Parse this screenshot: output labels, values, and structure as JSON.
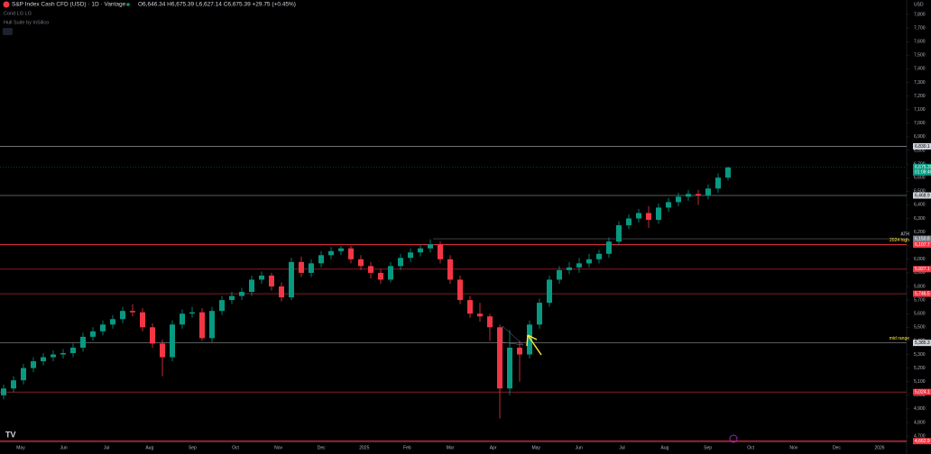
{
  "header": {
    "symbol": "S&P Index Cash CFD (USD) · 1D · Vantage",
    "ohlc_readout": "O6,646.34 H6,675.39 L6,627.14 C6,675.39 +29.75 (+0.45%)",
    "indicator_1": "Cond LG LG",
    "indicator_2": "Hull Suite by InSilico",
    "currency": "USD"
  },
  "chart_data": {
    "type": "candlestick",
    "title": "S&P Index Cash CFD (USD)",
    "colors": {
      "up": "#089981",
      "down": "#f23645"
    },
    "x_labels": [
      "May",
      "Jun",
      "Jul",
      "Aug",
      "Sep",
      "Oct",
      "Nov",
      "Dec",
      "2025",
      "Feb",
      "Mar",
      "Apr",
      "May",
      "Jun",
      "Jul",
      "Aug",
      "Sep",
      "Oct",
      "Nov",
      "Dec",
      "2026"
    ],
    "ylim": [
      4661,
      7906
    ],
    "yticks": [
      {
        "value": 4700,
        "label": "4,700"
      },
      {
        "value": 4800,
        "label": "4,800"
      },
      {
        "value": 4900,
        "label": "4,900"
      },
      {
        "value": 5000,
        "label": "5,000"
      },
      {
        "value": 5100,
        "label": "5,100"
      },
      {
        "value": 5200,
        "label": "5,200"
      },
      {
        "value": 5300,
        "label": "5,300"
      },
      {
        "value": 5400,
        "label": "5,400"
      },
      {
        "value": 5500,
        "label": "5,500"
      },
      {
        "value": 5600,
        "label": "5,600"
      },
      {
        "value": 5700,
        "label": "5,700"
      },
      {
        "value": 5800,
        "label": "5,800"
      },
      {
        "value": 5900,
        "label": "5,900"
      },
      {
        "value": 6000,
        "label": "6,000"
      },
      {
        "value": 6100,
        "label": "6,100"
      },
      {
        "value": 6200,
        "label": "6,200"
      },
      {
        "value": 6300,
        "label": "6,300"
      },
      {
        "value": 6400,
        "label": "6,400"
      },
      {
        "value": 6500,
        "label": "6,500"
      },
      {
        "value": 6600,
        "label": "6,600"
      },
      {
        "value": 6700,
        "label": "6,700"
      },
      {
        "value": 6800,
        "label": "6,800"
      },
      {
        "value": 6900,
        "label": "6,900"
      },
      {
        "value": 7000,
        "label": "7,000"
      },
      {
        "value": 7100,
        "label": "7,100"
      },
      {
        "value": 7200,
        "label": "7,200"
      },
      {
        "value": 7300,
        "label": "7,300"
      },
      {
        "value": 7400,
        "label": "7,400"
      },
      {
        "value": 7500,
        "label": "7,500"
      },
      {
        "value": 7600,
        "label": "7,600"
      },
      {
        "value": 7700,
        "label": "7,700"
      },
      {
        "value": 7800,
        "label": "7,800"
      }
    ],
    "levels": [
      {
        "value": 6830.1,
        "label": "6,830.1",
        "color": "#d1d4dc"
      },
      {
        "value": 6468.9,
        "label": "6,468.9",
        "color": "#d1d4dc"
      },
      {
        "value": 6150.8,
        "label": "6,150.8",
        "color": "#787b86",
        "note": "ATH"
      },
      {
        "value": 6107.7,
        "label": "6,107.7",
        "color": "#f23645",
        "note": "2024 high"
      },
      {
        "value": 5927.1,
        "label": "5,927.1",
        "color": "#f23645"
      },
      {
        "value": 5746.5,
        "label": "5,746.5",
        "color": "#f23645"
      },
      {
        "value": 5385.3,
        "label": "5,385.3",
        "color": "#d1d4dc",
        "note": "mid range"
      },
      {
        "value": 5024.1,
        "label": "5,024.1",
        "color": "#f23645"
      },
      {
        "value": 4662.9,
        "label": "4,662.9",
        "color": "#f23645"
      }
    ],
    "last_price": {
      "value": 6675.39,
      "label": "6,675.39",
      "countdown": "01:08:46",
      "color": "#089981"
    },
    "ohlc": [
      [
        5000,
        5080,
        4970,
        5050
      ],
      [
        5050,
        5140,
        5020,
        5110
      ],
      [
        5110,
        5230,
        5080,
        5200
      ],
      [
        5200,
        5280,
        5170,
        5250
      ],
      [
        5250,
        5310,
        5220,
        5280
      ],
      [
        5280,
        5330,
        5250,
        5300
      ],
      [
        5300,
        5340,
        5270,
        5310
      ],
      [
        5310,
        5380,
        5280,
        5350
      ],
      [
        5350,
        5460,
        5320,
        5430
      ],
      [
        5430,
        5500,
        5400,
        5470
      ],
      [
        5470,
        5550,
        5440,
        5520
      ],
      [
        5520,
        5590,
        5490,
        5560
      ],
      [
        5560,
        5650,
        5530,
        5620
      ],
      [
        5620,
        5670,
        5580,
        5610
      ],
      [
        5610,
        5640,
        5470,
        5500
      ],
      [
        5500,
        5530,
        5350,
        5380
      ],
      [
        5380,
        5410,
        5140,
        5280
      ],
      [
        5280,
        5550,
        5250,
        5520
      ],
      [
        5520,
        5630,
        5490,
        5600
      ],
      [
        5600,
        5650,
        5570,
        5610
      ],
      [
        5610,
        5640,
        5400,
        5420
      ],
      [
        5420,
        5650,
        5390,
        5620
      ],
      [
        5620,
        5730,
        5590,
        5700
      ],
      [
        5700,
        5760,
        5670,
        5730
      ],
      [
        5730,
        5790,
        5700,
        5760
      ],
      [
        5760,
        5880,
        5730,
        5850
      ],
      [
        5850,
        5910,
        5820,
        5880
      ],
      [
        5880,
        5900,
        5770,
        5800
      ],
      [
        5800,
        5830,
        5690,
        5720
      ],
      [
        5720,
        6010,
        5700,
        5980
      ],
      [
        5980,
        6020,
        5870,
        5900
      ],
      [
        5900,
        6000,
        5870,
        5970
      ],
      [
        5970,
        6060,
        5940,
        6030
      ],
      [
        6030,
        6090,
        6000,
        6060
      ],
      [
        6060,
        6100,
        6030,
        6080
      ],
      [
        6080,
        6100,
        5970,
        6000
      ],
      [
        6000,
        6030,
        5920,
        5950
      ],
      [
        5950,
        5980,
        5860,
        5900
      ],
      [
        5900,
        5930,
        5820,
        5850
      ],
      [
        5850,
        5980,
        5830,
        5950
      ],
      [
        5950,
        6040,
        5920,
        6010
      ],
      [
        6010,
        6080,
        5980,
        6050
      ],
      [
        6050,
        6110,
        6020,
        6080
      ],
      [
        6080,
        6147,
        6050,
        6110
      ],
      [
        6110,
        6130,
        5970,
        6000
      ],
      [
        6000,
        6030,
        5820,
        5850
      ],
      [
        5850,
        5880,
        5670,
        5700
      ],
      [
        5700,
        5730,
        5570,
        5600
      ],
      [
        5600,
        5680,
        5540,
        5580
      ],
      [
        5580,
        5600,
        5400,
        5500
      ],
      [
        5500,
        5520,
        4830,
        5050
      ],
      [
        5050,
        5480,
        5000,
        5350
      ],
      [
        5350,
        5400,
        5100,
        5300
      ],
      [
        5300,
        5550,
        5270,
        5520
      ],
      [
        5520,
        5710,
        5490,
        5680
      ],
      [
        5680,
        5880,
        5650,
        5850
      ],
      [
        5850,
        5950,
        5820,
        5920
      ],
      [
        5920,
        5980,
        5890,
        5940
      ],
      [
        5940,
        6010,
        5900,
        5970
      ],
      [
        5970,
        6040,
        5940,
        6000
      ],
      [
        6000,
        6070,
        5970,
        6040
      ],
      [
        6040,
        6160,
        6010,
        6130
      ],
      [
        6130,
        6280,
        6100,
        6250
      ],
      [
        6250,
        6330,
        6220,
        6300
      ],
      [
        6300,
        6370,
        6270,
        6340
      ],
      [
        6340,
        6390,
        6230,
        6290
      ],
      [
        6290,
        6410,
        6260,
        6380
      ],
      [
        6380,
        6450,
        6350,
        6420
      ],
      [
        6420,
        6490,
        6390,
        6460
      ],
      [
        6460,
        6510,
        6430,
        6480
      ],
      [
        6480,
        6510,
        6400,
        6470
      ],
      [
        6470,
        6550,
        6440,
        6520
      ],
      [
        6520,
        6630,
        6490,
        6600
      ],
      [
        6600,
        6680,
        6580,
        6675
      ]
    ]
  }
}
